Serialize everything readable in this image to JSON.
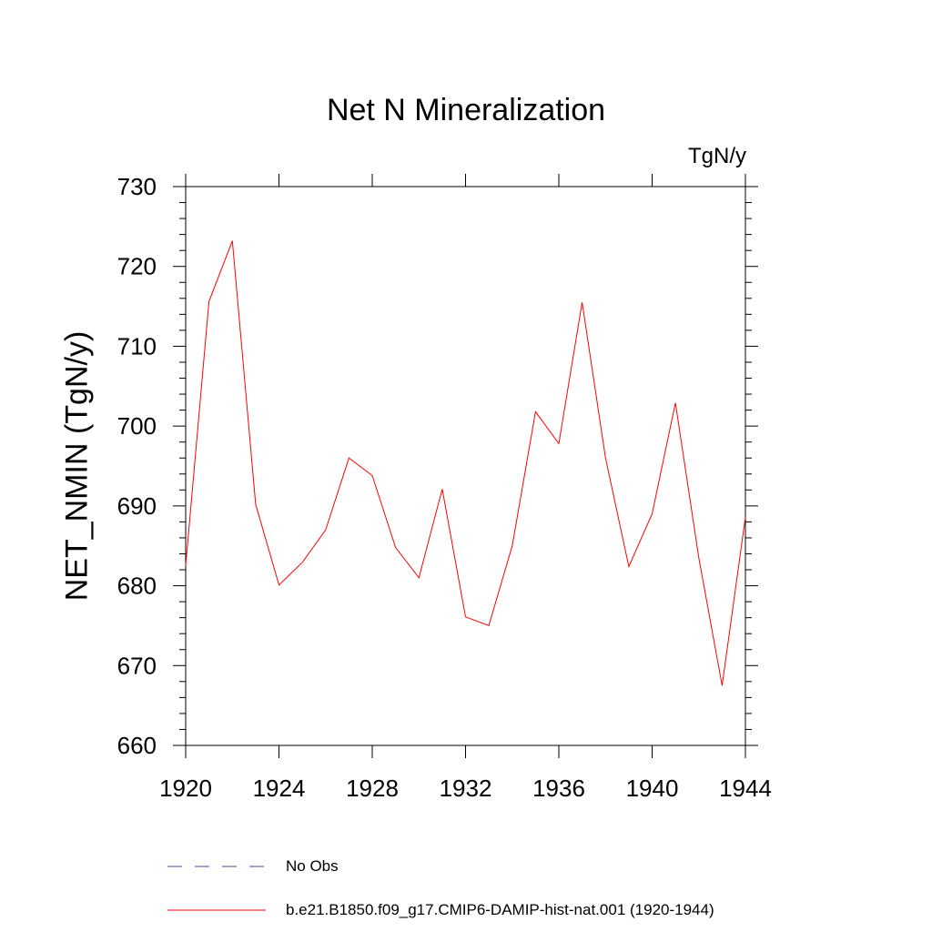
{
  "chart_data": {
    "type": "line",
    "title": "Net N Mineralization",
    "units": "TgN/y",
    "ylabel": "NET_NMIN  (TgN/y)",
    "xlabel": "",
    "xlim": [
      1920,
      1944
    ],
    "ylim": [
      660,
      730
    ],
    "xticks": [
      1920,
      1924,
      1928,
      1932,
      1936,
      1940,
      1944
    ],
    "yticks": [
      660,
      670,
      680,
      690,
      700,
      710,
      720,
      730
    ],
    "x": [
      1920,
      1921,
      1922,
      1923,
      1924,
      1925,
      1926,
      1927,
      1928,
      1929,
      1930,
      1931,
      1932,
      1933,
      1934,
      1935,
      1936,
      1937,
      1938,
      1939,
      1940,
      1941,
      1942,
      1943,
      1944
    ],
    "series": [
      {
        "name": "b.e21.B1850.f09_g17.CMIP6-DAMIP-hist-nat.001 (1920-1944)",
        "color": "#ff0000",
        "values": [
          682.5,
          715.6,
          723.2,
          690.2,
          680.1,
          682.9,
          687.0,
          696.0,
          693.8,
          684.8,
          681.0,
          692.1,
          676.1,
          675.0,
          685.0,
          701.8,
          697.8,
          715.5,
          696.0,
          682.4,
          689.0,
          702.9,
          683.5,
          667.5,
          688.6
        ]
      }
    ],
    "legend": [
      {
        "label": "No Obs",
        "color": "#4444aa",
        "style": "dashed"
      },
      {
        "label": "b.e21.B1850.f09_g17.CMIP6-DAMIP-hist-nat.001 (1920-1944)",
        "color": "#ff0000",
        "style": "solid"
      }
    ],
    "legend_position": "bottom",
    "grid": false
  }
}
